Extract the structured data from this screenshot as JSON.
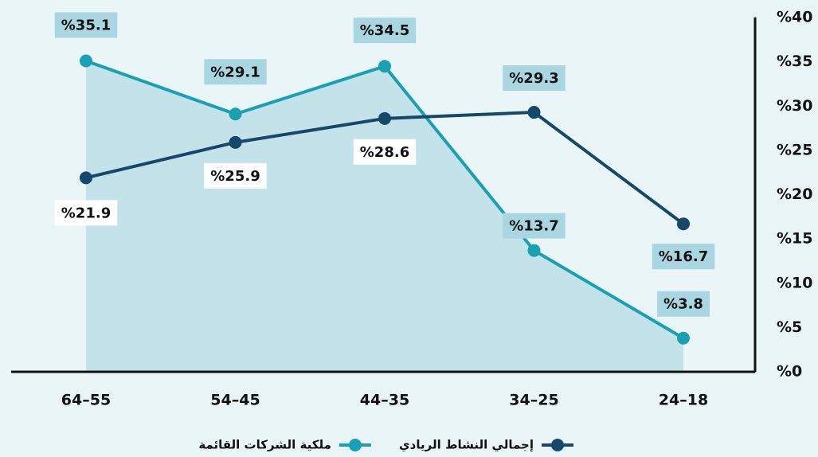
{
  "chart_data": {
    "type": "line",
    "categories": [
      "64–55",
      "54–45",
      "44–35",
      "34–25",
      "24–18"
    ],
    "series": [
      {
        "name": "ملكية الشركات القائمة",
        "color": "#1aa0b3",
        "area": true,
        "area_color": "#c3e2e9",
        "values": [
          35.1,
          29.1,
          34.5,
          13.7,
          3.8
        ],
        "value_labels": [
          "%35.1",
          "%29.1",
          "%34.5",
          "%13.7",
          "%3.8"
        ]
      },
      {
        "name": "إجمالي النشاط الريادي",
        "color": "#17486a",
        "values": [
          21.9,
          25.9,
          28.6,
          29.3,
          16.7
        ],
        "value_labels": [
          "%21.9",
          "%25.9",
          "%28.6",
          "%29.3",
          "%16.7"
        ]
      }
    ],
    "ylim": [
      0,
      40
    ],
    "yticks": [
      {
        "value": 0,
        "label": "%0"
      },
      {
        "value": 5,
        "label": "%5"
      },
      {
        "value": 10,
        "label": "%10"
      },
      {
        "value": 15,
        "label": "%15"
      },
      {
        "value": 20,
        "label": "%20"
      },
      {
        "value": 25,
        "label": "%25"
      },
      {
        "value": 30,
        "label": "%30"
      },
      {
        "value": 35,
        "label": "%35"
      },
      {
        "value": 40,
        "label": "%40"
      }
    ],
    "y_axis_side": "right"
  }
}
